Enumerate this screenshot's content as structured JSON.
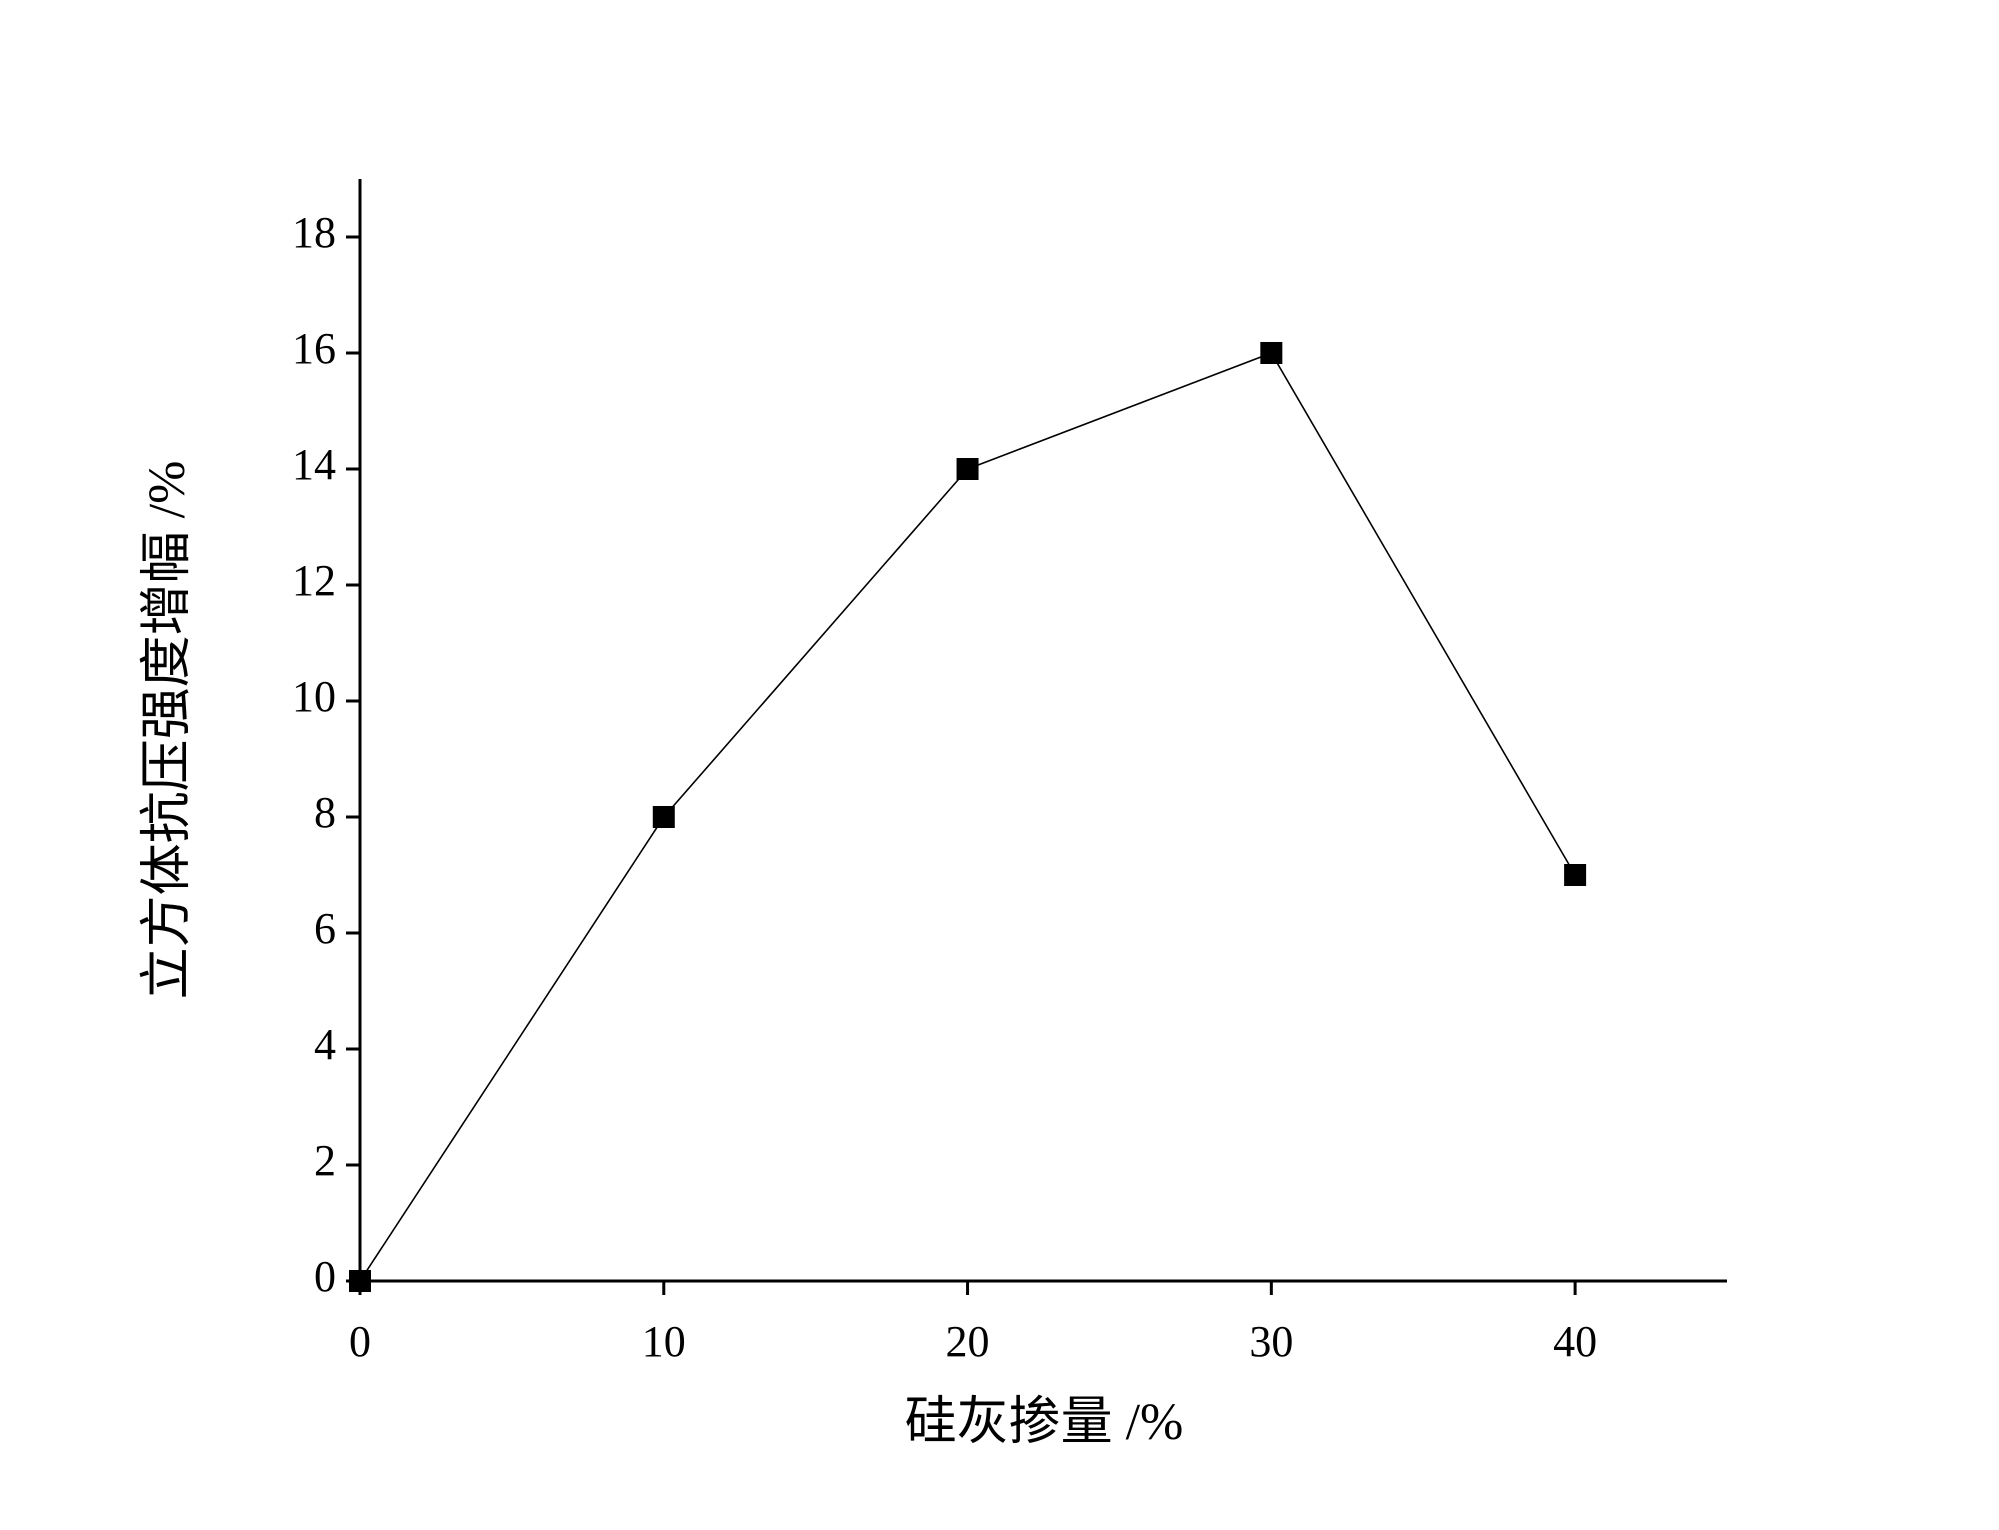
{
  "chart_data": {
    "type": "line",
    "x_label": "硅灰掺量 /%",
    "y_label": "立方体抗压强度增幅 /%",
    "x": [
      0,
      10,
      20,
      30,
      40
    ],
    "series": [
      {
        "color": "#000000",
        "values": [
          0,
          8,
          14,
          16,
          7
        ]
      }
    ],
    "xlim": [
      0,
      45
    ],
    "xticks": [
      0,
      10,
      20,
      30,
      40
    ],
    "ylim": [
      0,
      19
    ],
    "yticks": [
      0,
      2,
      4,
      6,
      8,
      10,
      12,
      14,
      16,
      18
    ],
    "grid": false
  }
}
